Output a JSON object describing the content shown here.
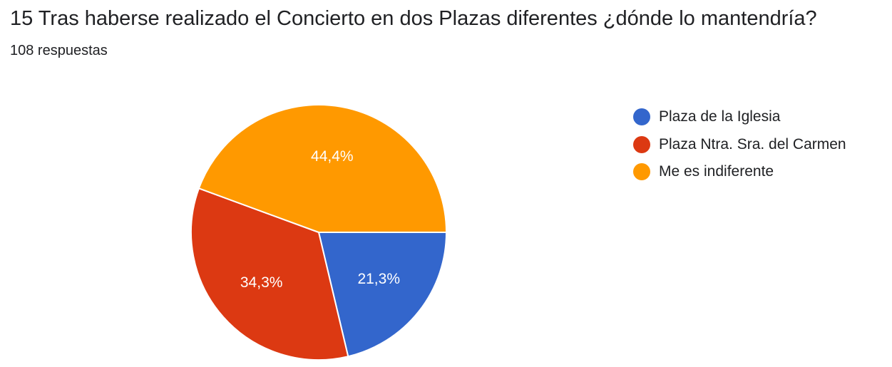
{
  "title": "15 Tras haberse realizado el Concierto en dos Plazas diferentes ¿dónde lo mantendría?",
  "subtitle": "108 respuestas",
  "chart_data": {
    "type": "pie",
    "categories": [
      "Plaza de la Iglesia",
      "Plaza Ntra. Sra. del Carmen",
      "Me es indiferente"
    ],
    "values": [
      21.3,
      34.3,
      44.4
    ],
    "labels": [
      "21,3%",
      "34,3%",
      "44,4%"
    ],
    "colors": [
      "#3366cc",
      "#dc3912",
      "#ff9900"
    ],
    "legend_position": "right"
  }
}
